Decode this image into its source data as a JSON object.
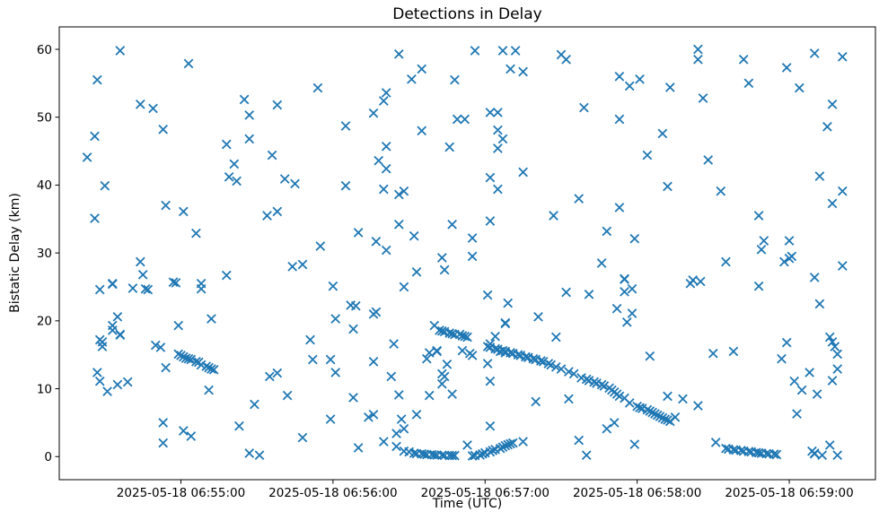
{
  "title": "Detections in Delay",
  "xlabel": "Time (UTC)",
  "ylabel": "Bistatic Delay (km)",
  "chart_data": {
    "type": "scatter",
    "marker": "x",
    "marker_color": "#1f77b4",
    "axis_color": "#000000",
    "background": "#ffffff",
    "grid": false,
    "legend": "none",
    "time_base": "2025-05-18 06:54:00",
    "x_unit": "seconds after time_base",
    "xlim": [
      12,
      334
    ],
    "ylim": [
      -3.4,
      63.3
    ],
    "x_ticks": [
      {
        "t": 60,
        "label": "2025-05-18 06:55:00"
      },
      {
        "t": 120,
        "label": "2025-05-18 06:56:00"
      },
      {
        "t": 180,
        "label": "2025-05-18 06:57:00"
      },
      {
        "t": 240,
        "label": "2025-05-18 06:58:00"
      },
      {
        "t": 300,
        "label": "2025-05-18 06:59:00"
      }
    ],
    "y_ticks": [
      0,
      10,
      20,
      30,
      40,
      50,
      60
    ],
    "points": [
      [
        36,
        59.8
      ],
      [
        63,
        57.9
      ],
      [
        27,
        55.5
      ],
      [
        44,
        51.9
      ],
      [
        49,
        51.3
      ],
      [
        53,
        48.2
      ],
      [
        26,
        47.2
      ],
      [
        23,
        44.1
      ],
      [
        85,
        52.6
      ],
      [
        87,
        50.3
      ],
      [
        87,
        46.8
      ],
      [
        78,
        46.0
      ],
      [
        81,
        43.1
      ],
      [
        79,
        41.2
      ],
      [
        82,
        40.6
      ],
      [
        146,
        59.3
      ],
      [
        155,
        57.1
      ],
      [
        151,
        55.6
      ],
      [
        168,
        55.5
      ],
      [
        114,
        54.3
      ],
      [
        141,
        53.6
      ],
      [
        98,
        51.8
      ],
      [
        140,
        52.4
      ],
      [
        136,
        50.6
      ],
      [
        125,
        48.7
      ],
      [
        169,
        49.7
      ],
      [
        172,
        49.7
      ],
      [
        155,
        48.0
      ],
      [
        141,
        45.7
      ],
      [
        166,
        45.6
      ],
      [
        96,
        44.4
      ],
      [
        138,
        43.6
      ],
      [
        141,
        42.4
      ],
      [
        101,
        40.9
      ],
      [
        105,
        40.2
      ],
      [
        176,
        59.8
      ],
      [
        187,
        59.8
      ],
      [
        192,
        59.8
      ],
      [
        210,
        59.2
      ],
      [
        212,
        58.5
      ],
      [
        190,
        57.1
      ],
      [
        195,
        56.7
      ],
      [
        233,
        56.0
      ],
      [
        237,
        54.6
      ],
      [
        241,
        55.6
      ],
      [
        253,
        54.4
      ],
      [
        219,
        51.4
      ],
      [
        182,
        50.7
      ],
      [
        185,
        50.7
      ],
      [
        233,
        49.7
      ],
      [
        185,
        48.1
      ],
      [
        187,
        46.8
      ],
      [
        185,
        45.4
      ],
      [
        250,
        47.6
      ],
      [
        244,
        44.4
      ],
      [
        195,
        41.9
      ],
      [
        182,
        41.1
      ],
      [
        264,
        60.0
      ],
      [
        264,
        58.5
      ],
      [
        310,
        59.4
      ],
      [
        321,
        58.9
      ],
      [
        282,
        58.5
      ],
      [
        299,
        57.3
      ],
      [
        284,
        55.0
      ],
      [
        304,
        54.3
      ],
      [
        266,
        52.8
      ],
      [
        317,
        51.9
      ],
      [
        315,
        48.6
      ],
      [
        268,
        43.7
      ],
      [
        312,
        41.3
      ],
      [
        30,
        39.9
      ],
      [
        54,
        37.0
      ],
      [
        61,
        36.1
      ],
      [
        26,
        35.1
      ],
      [
        66,
        32.9
      ],
      [
        44,
        28.7
      ],
      [
        45,
        26.8
      ],
      [
        33,
        25.5
      ],
      [
        33,
        25.4
      ],
      [
        28,
        24.6
      ],
      [
        41,
        24.8
      ],
      [
        46,
        24.7
      ],
      [
        47,
        24.6
      ],
      [
        58,
        25.6
      ],
      [
        57,
        25.7
      ],
      [
        68,
        25.5
      ],
      [
        68,
        24.7
      ],
      [
        78,
        26.7
      ],
      [
        35,
        20.6
      ],
      [
        33,
        19.3
      ],
      [
        59,
        19.3
      ],
      [
        72,
        20.3
      ],
      [
        125,
        39.9
      ],
      [
        140,
        39.4
      ],
      [
        146,
        38.6
      ],
      [
        148,
        39.1
      ],
      [
        94,
        35.5
      ],
      [
        98,
        36.1
      ],
      [
        146,
        34.2
      ],
      [
        167,
        34.2
      ],
      [
        130,
        33.0
      ],
      [
        152,
        32.5
      ],
      [
        137,
        31.7
      ],
      [
        115,
        31.0
      ],
      [
        141,
        30.4
      ],
      [
        163,
        29.3
      ],
      [
        104,
        28.0
      ],
      [
        108,
        28.3
      ],
      [
        153,
        27.2
      ],
      [
        164,
        27.5
      ],
      [
        120,
        25.1
      ],
      [
        148,
        25.0
      ],
      [
        127,
        22.3
      ],
      [
        129,
        22.2
      ],
      [
        136,
        21.0
      ],
      [
        137,
        21.3
      ],
      [
        121,
        20.3
      ],
      [
        185,
        39.4
      ],
      [
        252,
        39.8
      ],
      [
        217,
        38.0
      ],
      [
        233,
        36.7
      ],
      [
        207,
        35.5
      ],
      [
        182,
        34.7
      ],
      [
        175,
        32.2
      ],
      [
        175,
        29.5
      ],
      [
        228,
        33.2
      ],
      [
        239,
        32.1
      ],
      [
        226,
        28.5
      ],
      [
        235,
        26.2
      ],
      [
        235,
        26.1
      ],
      [
        235,
        24.3
      ],
      [
        238,
        24.7
      ],
      [
        181,
        23.8
      ],
      [
        212,
        24.2
      ],
      [
        221,
        23.9
      ],
      [
        189,
        22.6
      ],
      [
        232,
        21.8
      ],
      [
        238,
        21.1
      ],
      [
        201,
        20.6
      ],
      [
        188,
        19.7
      ],
      [
        236,
        19.8
      ],
      [
        273,
        39.1
      ],
      [
        321,
        39.1
      ],
      [
        317,
        37.3
      ],
      [
        288,
        35.5
      ],
      [
        290,
        31.8
      ],
      [
        289,
        30.5
      ],
      [
        300,
        31.8
      ],
      [
        298,
        28.7
      ],
      [
        300,
        29.2
      ],
      [
        301,
        29.5
      ],
      [
        275,
        28.7
      ],
      [
        321,
        28.1
      ],
      [
        261,
        25.5
      ],
      [
        262,
        26.0
      ],
      [
        265,
        25.8
      ],
      [
        310,
        26.4
      ],
      [
        288,
        25.1
      ],
      [
        312,
        22.5
      ],
      [
        33,
        18.6
      ],
      [
        36,
        18.0
      ],
      [
        36,
        17.9
      ],
      [
        28,
        17.2
      ],
      [
        29,
        16.9
      ],
      [
        29,
        16.2
      ],
      [
        27,
        12.4
      ],
      [
        28,
        11.1
      ],
      [
        31,
        9.6
      ],
      [
        35,
        10.6
      ],
      [
        39,
        11.0
      ],
      [
        50,
        16.4
      ],
      [
        52,
        16.1
      ],
      [
        54,
        13.1
      ],
      [
        59,
        15.1
      ],
      [
        60,
        14.9
      ],
      [
        61,
        14.7
      ],
      [
        62,
        14.5
      ],
      [
        63,
        14.4
      ],
      [
        64,
        14.3
      ],
      [
        66,
        14.0
      ],
      [
        67,
        13.9
      ],
      [
        68,
        13.5
      ],
      [
        70,
        13.3
      ],
      [
        71,
        13.1
      ],
      [
        72,
        12.9
      ],
      [
        73,
        12.8
      ],
      [
        71,
        9.8
      ],
      [
        89,
        7.7
      ],
      [
        53,
        5.0
      ],
      [
        53,
        2.0
      ],
      [
        61,
        3.8
      ],
      [
        64,
        3.0
      ],
      [
        83,
        4.5
      ],
      [
        87,
        0.5
      ],
      [
        91,
        0.2
      ],
      [
        128,
        18.8
      ],
      [
        111,
        17.2
      ],
      [
        144,
        16.6
      ],
      [
        157,
        14.4
      ],
      [
        161,
        15.5
      ],
      [
        95,
        11.8
      ],
      [
        98,
        12.3
      ],
      [
        102,
        9.0
      ],
      [
        112,
        14.3
      ],
      [
        119,
        14.3
      ],
      [
        121,
        12.4
      ],
      [
        136,
        14.0
      ],
      [
        143,
        11.8
      ],
      [
        119,
        5.5
      ],
      [
        108,
        2.8
      ],
      [
        128,
        8.7
      ],
      [
        130,
        1.3
      ],
      [
        134,
        5.8
      ],
      [
        136,
        6.2
      ],
      [
        140,
        2.2
      ],
      [
        146,
        9.1
      ],
      [
        147,
        5.5
      ],
      [
        148,
        4.1
      ],
      [
        145,
        3.4
      ],
      [
        153,
        6.2
      ],
      [
        158,
        9.0
      ],
      [
        163,
        12.2
      ],
      [
        164,
        11.8
      ],
      [
        163,
        10.7
      ],
      [
        167,
        9.2
      ],
      [
        165,
        13.6
      ],
      [
        173,
        1.7
      ],
      [
        160,
        19.3
      ],
      [
        188,
        19.6
      ],
      [
        158,
        15.3
      ],
      [
        161,
        15.6
      ],
      [
        171,
        15.6
      ],
      [
        174,
        15.2
      ],
      [
        182,
        16.6
      ],
      [
        184,
        17.7
      ],
      [
        184,
        15.9
      ],
      [
        186,
        15.5
      ],
      [
        188,
        15.3
      ],
      [
        208,
        17.6
      ],
      [
        162,
        18.6
      ],
      [
        163,
        18.5
      ],
      [
        164,
        18.4
      ],
      [
        166,
        18.2
      ],
      [
        167,
        18.1
      ],
      [
        168,
        18.0
      ],
      [
        170,
        18.0
      ],
      [
        171,
        17.8
      ],
      [
        172,
        17.7
      ],
      [
        173,
        17.6
      ],
      [
        181,
        16.2
      ],
      [
        182,
        16.1
      ],
      [
        184,
        15.9
      ],
      [
        185,
        15.8
      ],
      [
        187,
        15.6
      ],
      [
        188,
        15.5
      ],
      [
        190,
        15.3
      ],
      [
        191,
        15.2
      ],
      [
        193,
        15.0
      ],
      [
        194,
        14.9
      ],
      [
        196,
        14.7
      ],
      [
        197,
        14.6
      ],
      [
        199,
        14.4
      ],
      [
        200,
        14.3
      ],
      [
        202,
        14.1
      ],
      [
        203,
        14.0
      ],
      [
        205,
        13.7
      ],
      [
        206,
        13.5
      ],
      [
        208,
        13.2
      ],
      [
        210,
        12.9
      ],
      [
        213,
        12.5
      ],
      [
        215,
        12.2
      ],
      [
        218,
        11.6
      ],
      [
        220,
        11.4
      ],
      [
        221,
        11.2
      ],
      [
        223,
        11.0
      ],
      [
        224,
        10.8
      ],
      [
        226,
        10.6
      ],
      [
        227,
        10.4
      ],
      [
        229,
        10.1
      ],
      [
        230,
        9.8
      ],
      [
        231,
        9.5
      ],
      [
        232,
        9.2
      ],
      [
        233,
        8.9
      ],
      [
        235,
        8.6
      ],
      [
        237,
        7.9
      ],
      [
        240,
        7.4
      ],
      [
        241,
        7.2
      ],
      [
        242,
        7.1
      ],
      [
        244,
        6.9
      ],
      [
        245,
        6.7
      ],
      [
        246,
        6.5
      ],
      [
        247,
        6.3
      ],
      [
        248,
        6.1
      ],
      [
        249,
        5.9
      ],
      [
        250,
        5.7
      ],
      [
        251,
        5.5
      ],
      [
        252,
        5.4
      ],
      [
        253,
        5.2
      ],
      [
        181,
        13.7
      ],
      [
        182,
        11.1
      ],
      [
        175,
        14.9
      ],
      [
        182,
        4.5
      ],
      [
        195,
        2.2
      ],
      [
        217,
        2.4
      ],
      [
        220,
        0.2
      ],
      [
        228,
        4.1
      ],
      [
        231,
        5.0
      ],
      [
        239,
        1.8
      ],
      [
        245,
        14.8
      ],
      [
        252,
        8.9
      ],
      [
        255,
        5.8
      ],
      [
        258,
        8.5
      ],
      [
        264,
        7.5
      ],
      [
        200,
        8.1
      ],
      [
        213,
        8.5
      ],
      [
        145,
        1.5
      ],
      [
        148,
        0.8
      ],
      [
        150,
        0.7
      ],
      [
        152,
        0.5
      ],
      [
        153,
        0.45
      ],
      [
        155,
        0.4
      ],
      [
        156,
        0.35
      ],
      [
        157,
        0.3
      ],
      [
        159,
        0.28
      ],
      [
        160,
        0.25
      ],
      [
        161,
        0.22
      ],
      [
        163,
        0.2
      ],
      [
        164,
        0.18
      ],
      [
        166,
        0.16
      ],
      [
        167,
        0.15
      ],
      [
        168,
        0.15
      ],
      [
        175,
        0.1
      ],
      [
        176,
        0.15
      ],
      [
        178,
        0.25
      ],
      [
        179,
        0.4
      ],
      [
        180,
        0.55
      ],
      [
        182,
        0.7
      ],
      [
        183,
        0.9
      ],
      [
        184,
        1.05
      ],
      [
        186,
        1.2
      ],
      [
        187,
        1.4
      ],
      [
        188,
        1.6
      ],
      [
        189,
        1.75
      ],
      [
        190,
        1.9
      ],
      [
        191,
        2.0
      ],
      [
        270,
        15.2
      ],
      [
        278,
        15.5
      ],
      [
        299,
        16.8
      ],
      [
        297,
        14.4
      ],
      [
        316,
        17.6
      ],
      [
        317,
        16.9
      ],
      [
        318,
        16.2
      ],
      [
        319,
        15.1
      ],
      [
        319,
        12.9
      ],
      [
        317,
        11.2
      ],
      [
        308,
        12.4
      ],
      [
        302,
        11.1
      ],
      [
        305,
        9.8
      ],
      [
        311,
        9.2
      ],
      [
        303,
        6.3
      ],
      [
        271,
        2.1
      ],
      [
        275,
        1.2
      ],
      [
        276,
        1.1
      ],
      [
        278,
        1.0
      ],
      [
        279,
        0.95
      ],
      [
        281,
        0.9
      ],
      [
        282,
        0.8
      ],
      [
        284,
        0.75
      ],
      [
        285,
        0.7
      ],
      [
        287,
        0.6
      ],
      [
        288,
        0.55
      ],
      [
        289,
        0.5
      ],
      [
        291,
        0.45
      ],
      [
        292,
        0.4
      ],
      [
        294,
        0.35
      ],
      [
        295,
        0.3
      ],
      [
        309,
        0.8
      ],
      [
        310,
        0.4
      ],
      [
        310,
        0.5
      ],
      [
        313,
        0.2
      ],
      [
        316,
        1.7
      ],
      [
        319,
        0.2
      ]
    ]
  }
}
